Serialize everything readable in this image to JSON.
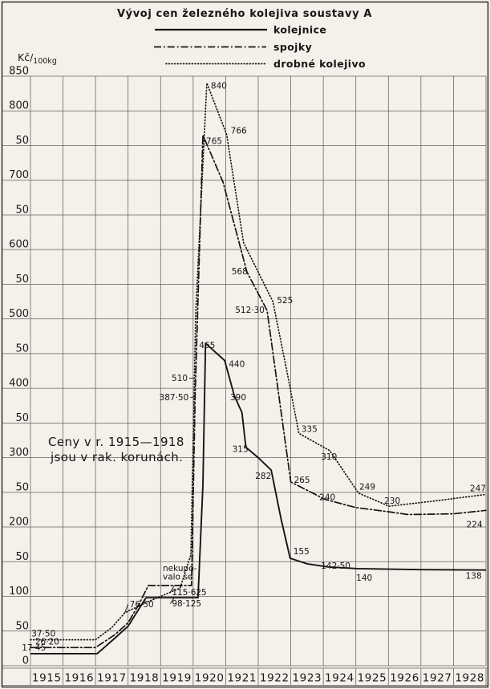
{
  "page": {
    "background": "#f4f1ea",
    "ink": "#1b1b1b",
    "grid_color": "#3c3c3c"
  },
  "header": {
    "title": "Vývoj cen železného kolejiva soustavy A",
    "legend": [
      {
        "label": "kolejnice",
        "style": "solid"
      },
      {
        "label": "spojky",
        "style": "dashdot"
      },
      {
        "label": "drobné kolejivo",
        "style": "dotted"
      }
    ]
  },
  "y_axis": {
    "unit_prefix": "Kč/",
    "unit_sub": "100kg",
    "min": 0,
    "max": 850,
    "step": 50
  },
  "x_axis": {
    "years": [
      "1915",
      "1916",
      "1917",
      "1918",
      "1919",
      "1920",
      "1921",
      "1922",
      "1923",
      "1924",
      "1925",
      "1926",
      "1927",
      "1928"
    ]
  },
  "notes": {
    "currency": [
      "Ceny v r. 1915—1918",
      "jsou v rak. korunách."
    ],
    "no_purchase": [
      "nekupo-",
      "valo se"
    ]
  },
  "chart_data": {
    "type": "line",
    "title": "Vývoj cen železného kolejiva soustavy A",
    "ylabel": "Kč/100 kg",
    "ylim": [
      0,
      850
    ],
    "grid": true,
    "legend_position": "top",
    "x_years": [
      1915,
      1916,
      1917,
      1918,
      1919,
      1920,
      1921,
      1922,
      1923,
      1924,
      1925,
      1926,
      1927,
      1928
    ],
    "y_tick_rule": "hundreds labelled with value, intermediate lines labelled 50, top 850, bottom 0",
    "series": [
      {
        "name": "kolejnice",
        "dash": "solid",
        "polyline": [
          [
            0,
            17.45
          ],
          [
            2.05,
            17.45
          ],
          [
            2.6,
            40
          ],
          [
            3.0,
            57
          ],
          [
            3.55,
            98.125
          ],
          [
            5.15,
            98.125
          ],
          [
            5.3,
            260
          ],
          [
            5.38,
            465
          ],
          [
            5.97,
            440
          ],
          [
            6.26,
            390
          ],
          [
            6.5,
            365
          ],
          [
            6.62,
            315
          ],
          [
            7.0,
            300
          ],
          [
            7.4,
            282
          ],
          [
            7.7,
            212
          ],
          [
            7.98,
            155
          ],
          [
            8.5,
            147
          ],
          [
            9.15,
            142.5
          ],
          [
            10.06,
            140
          ],
          [
            12.0,
            138.5
          ],
          [
            14.0,
            138
          ]
        ],
        "labels": [
          {
            "t": "17·45",
            "value": 17.45,
            "p": 0.08,
            "v": 17.45,
            "dx": -14,
            "dy": -4,
            "a": "start"
          },
          {
            "t": "98·125",
            "value": 98.125,
            "p": 4.42,
            "v": 98.125,
            "dx": -3,
            "dy": 11,
            "a": "start",
            "leader": true
          },
          {
            "t": "465",
            "value": 465,
            "p": 5.38,
            "v": 465,
            "dx": -8,
            "dy": 6,
            "a": "start"
          },
          {
            "t": "440",
            "value": 440,
            "p": 5.97,
            "v": 440,
            "dx": 5,
            "dy": 8,
            "a": "start"
          },
          {
            "t": "390",
            "value": 390,
            "p": 6.26,
            "v": 390,
            "dx": -5,
            "dy": 6,
            "a": "start"
          },
          {
            "t": "315",
            "value": 315,
            "p": 6.62,
            "v": 315,
            "dx": -17,
            "dy": 6,
            "a": "start"
          },
          {
            "t": "282",
            "value": 282,
            "p": 7.4,
            "v": 282,
            "dx": -20,
            "dy": 11,
            "a": "start"
          },
          {
            "t": "155",
            "value": 155,
            "p": 7.98,
            "v": 155,
            "dx": 4,
            "dy": -5,
            "a": "start"
          },
          {
            "t": "142·50",
            "value": 142.5,
            "p": 9.15,
            "v": 142.5,
            "dx": -9,
            "dy": 2,
            "a": "start"
          },
          {
            "t": "140",
            "value": 140,
            "p": 10.06,
            "v": 140,
            "dx": -2,
            "dy": 15,
            "a": "start"
          },
          {
            "t": "138",
            "value": 138,
            "p": 13.72,
            "v": 138,
            "dx": -14,
            "dy": 11,
            "a": "start"
          }
        ]
      },
      {
        "name": "spojky",
        "dash": "dashdot",
        "polyline": [
          [
            0,
            26.2
          ],
          [
            2.0,
            26.2
          ],
          [
            2.6,
            45
          ],
          [
            3.0,
            62
          ],
          [
            3.35,
            90
          ],
          [
            3.62,
            115.625
          ],
          [
            4.95,
            115.625
          ],
          [
            5.06,
            387.5
          ],
          [
            5.3,
            765
          ],
          [
            5.92,
            697
          ],
          [
            6.65,
            568
          ],
          [
            7.27,
            512.3
          ],
          [
            8.0,
            265
          ],
          [
            9.05,
            240
          ],
          [
            10.0,
            228
          ],
          [
            11.0,
            222
          ],
          [
            11.6,
            218
          ],
          [
            13.0,
            219
          ],
          [
            14.0,
            224
          ]
        ],
        "labels": [
          {
            "t": "26·20",
            "value": 26.2,
            "p": 0.12,
            "v": 26.2,
            "dx": 1,
            "dy": -4,
            "a": "start"
          },
          {
            "t": "115·625",
            "value": 115.625,
            "p": 4.42,
            "v": 115.625,
            "dx": -3,
            "dy": 12,
            "a": "start",
            "leader": true
          },
          {
            "t": "387·50",
            "value": 387.5,
            "p": 5.06,
            "v": 387.5,
            "dx": -8,
            "dy": 4,
            "a": "end",
            "leader": true
          },
          {
            "t": "765",
            "value": 765,
            "p": 5.3,
            "v": 765,
            "dx": 4,
            "dy": 11,
            "a": "start"
          },
          {
            "t": "568",
            "value": 568,
            "p": 6.65,
            "v": 568,
            "dx": 1,
            "dy": 3,
            "a": "end"
          },
          {
            "t": "512·30",
            "value": 512.3,
            "p": 7.27,
            "v": 512.3,
            "dx": -3,
            "dy": 3,
            "a": "end"
          },
          {
            "t": "265",
            "value": 265,
            "p": 8.0,
            "v": 265,
            "dx": 4,
            "dy": 1,
            "a": "start"
          },
          {
            "t": "240",
            "value": 240,
            "p": 9.05,
            "v": 240,
            "dx": -7,
            "dy": 1,
            "a": "start"
          },
          {
            "t": "224",
            "value": 224,
            "p": 13.72,
            "v": 224,
            "dx": -13,
            "dy": 21,
            "a": "start"
          }
        ]
      },
      {
        "name": "drobné kolejivo",
        "dash": "dotted",
        "polyline": [
          [
            0,
            37.5
          ],
          [
            2.0,
            37.5
          ],
          [
            2.5,
            55
          ],
          [
            2.9,
            76.5
          ],
          [
            3.6,
            92
          ],
          [
            4.6,
            112
          ],
          [
            4.93,
            160
          ],
          [
            5.08,
            510
          ],
          [
            5.42,
            840
          ],
          [
            6.03,
            766
          ],
          [
            6.55,
            610
          ],
          [
            7.45,
            525
          ],
          [
            7.9,
            420
          ],
          [
            8.25,
            335
          ],
          [
            9.2,
            310
          ],
          [
            10.08,
            249
          ],
          [
            11.02,
            230
          ],
          [
            12.5,
            238
          ],
          [
            14.0,
            247
          ]
        ],
        "labels": [
          {
            "t": "37·50",
            "value": 37.5,
            "p": 0.08,
            "v": 37.5,
            "dx": -2,
            "dy": -4,
            "a": "start"
          },
          {
            "t": "76·50",
            "value": 76.5,
            "p": 2.9,
            "v": 76.5,
            "dx": 6,
            "dy": -7,
            "a": "start",
            "leader": true
          },
          {
            "t": "510",
            "value": 510,
            "p": 5.03,
            "v": 415,
            "dx": -8,
            "dy": 4,
            "a": "end",
            "leader": true
          },
          {
            "t": "840",
            "value": 840,
            "p": 5.42,
            "v": 840,
            "dx": 5,
            "dy": 7,
            "a": "start"
          },
          {
            "t": "766",
            "value": 766,
            "p": 6.03,
            "v": 766,
            "dx": 5,
            "dy": -1,
            "a": "start"
          },
          {
            "t": "525",
            "value": 525,
            "p": 7.45,
            "v": 525,
            "dx": 5,
            "dy": 2,
            "a": "start"
          },
          {
            "t": "335",
            "value": 335,
            "p": 8.25,
            "v": 335,
            "dx": 3,
            "dy": -2,
            "a": "start"
          },
          {
            "t": "310",
            "value": 310,
            "p": 9.2,
            "v": 310,
            "dx": -11,
            "dy": 11,
            "a": "start"
          },
          {
            "t": "249",
            "value": 249,
            "p": 10.08,
            "v": 249,
            "dx": 1,
            "dy": -4,
            "a": "start"
          },
          {
            "t": "230",
            "value": 230,
            "p": 11.02,
            "v": 230,
            "dx": -6,
            "dy": -3,
            "a": "start"
          },
          {
            "t": "247",
            "value": 247,
            "p": 13.95,
            "v": 247,
            "dx": 2,
            "dy": -4,
            "a": "end"
          }
        ]
      }
    ]
  }
}
